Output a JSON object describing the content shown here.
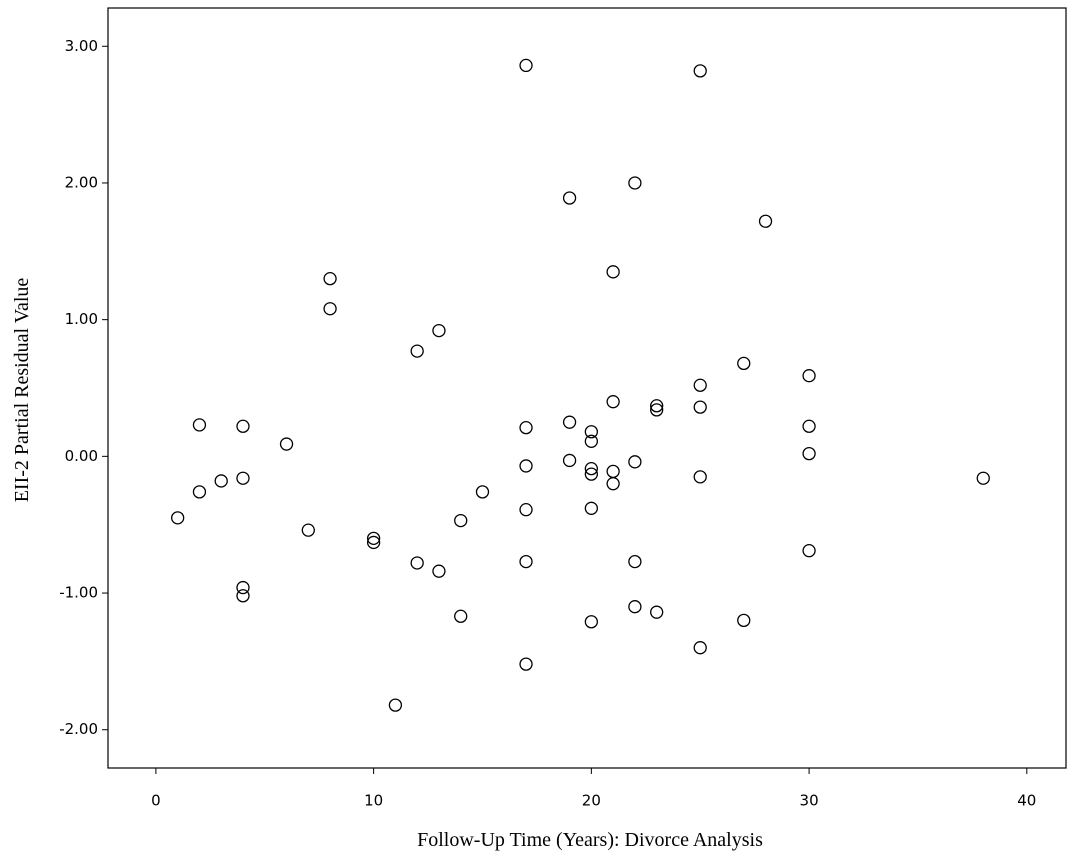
{
  "chart_data": {
    "type": "scatter",
    "x_label": "Follow-Up Time (Years): Divorce Analysis",
    "y_label": "EII-2 Partial Residual Value",
    "x": [
      17,
      25,
      22,
      19,
      28,
      21,
      8,
      8,
      13,
      12,
      27,
      30,
      25,
      21,
      23,
      23,
      25,
      19,
      2,
      4,
      17,
      30,
      20,
      20,
      6,
      30,
      19,
      22,
      17,
      20,
      21,
      20,
      25,
      4,
      38,
      3,
      21,
      2,
      15,
      1,
      14,
      7,
      17,
      20,
      10,
      10,
      30,
      22,
      17,
      12,
      13,
      4,
      4,
      22,
      23,
      14,
      20,
      27,
      25,
      17,
      11
    ],
    "values": [
      2.86,
      2.82,
      2.0,
      1.89,
      1.72,
      1.35,
      1.3,
      1.08,
      0.92,
      0.77,
      0.68,
      0.59,
      0.52,
      0.4,
      0.37,
      0.34,
      0.36,
      0.25,
      0.23,
      0.22,
      0.21,
      0.22,
      0.18,
      0.11,
      0.09,
      0.02,
      -0.03,
      -0.04,
      -0.07,
      -0.09,
      -0.11,
      -0.13,
      -0.15,
      -0.16,
      -0.16,
      -0.18,
      -0.2,
      -0.26,
      -0.26,
      -0.45,
      -0.47,
      -0.54,
      -0.39,
      -0.38,
      -0.6,
      -0.63,
      -0.69,
      -0.77,
      -0.77,
      -0.78,
      -0.84,
      -0.96,
      -1.02,
      -1.1,
      -1.14,
      -1.17,
      -1.21,
      -1.2,
      -1.4,
      -1.52,
      -1.82
    ],
    "color": "#000000",
    "xlim": [
      -2.2,
      41.8
    ],
    "ylim": [
      -2.28,
      3.28
    ],
    "xticks": [
      0,
      10,
      20,
      30,
      40
    ],
    "yticks": [
      {
        "value": -2,
        "label": "-2.00"
      },
      {
        "value": -1,
        "label": "-1.00"
      },
      {
        "value": 0,
        "label": "0.00"
      },
      {
        "value": 1,
        "label": "1.00"
      },
      {
        "value": 2,
        "label": "2.00"
      },
      {
        "value": 3,
        "label": "3.00"
      }
    ]
  }
}
